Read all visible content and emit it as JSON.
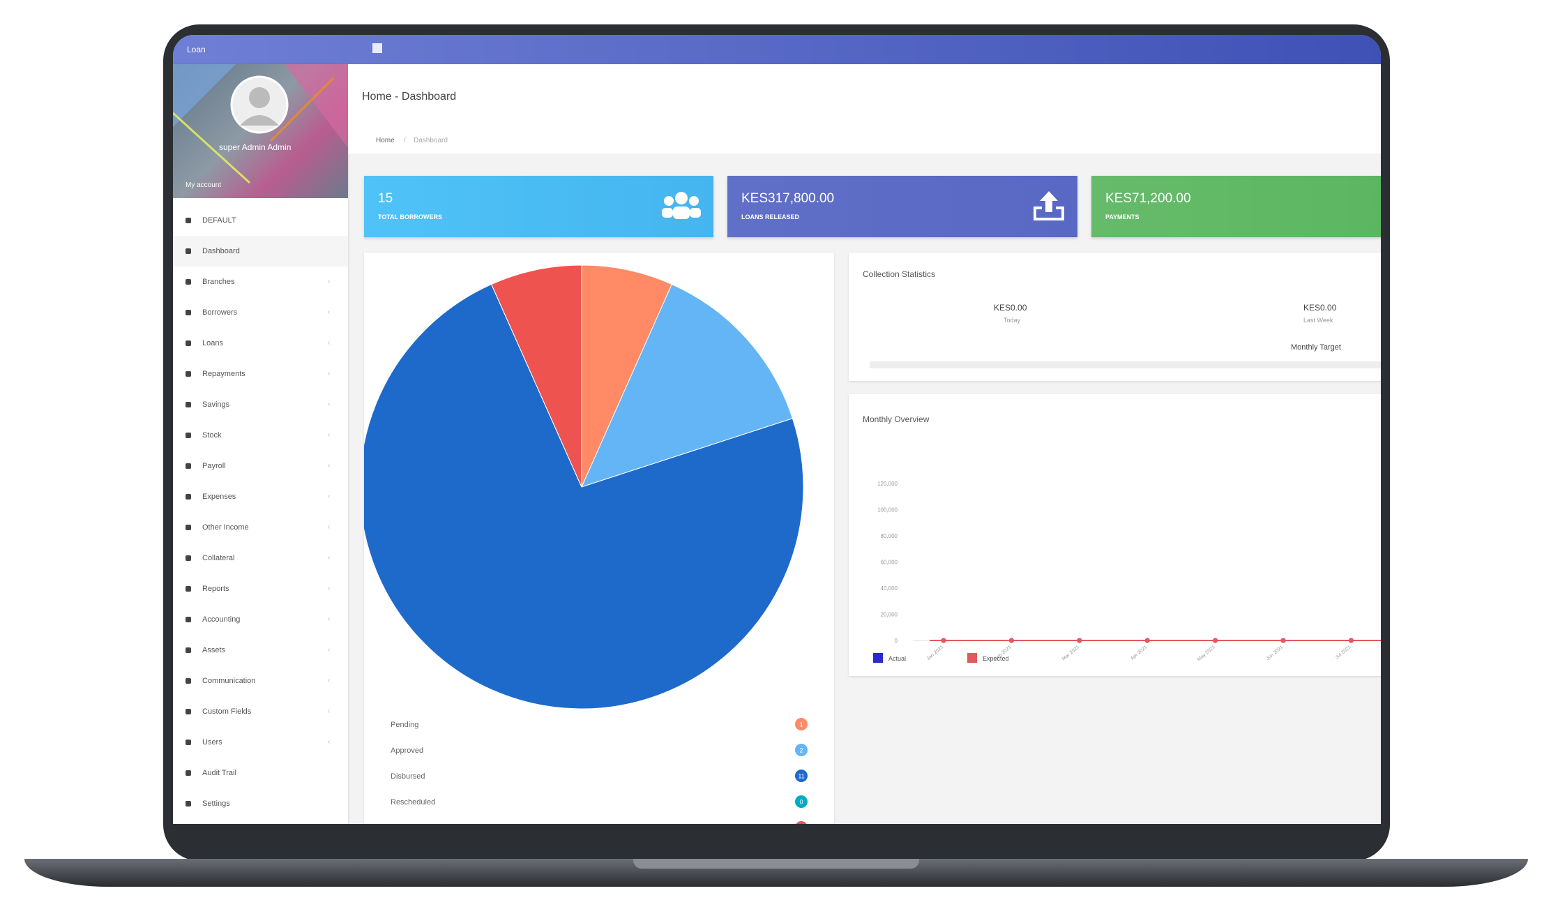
{
  "app": {
    "name": "Loan"
  },
  "profile": {
    "name": "super Admin Admin",
    "account": "My account"
  },
  "sidebar": {
    "items": [
      "DEFAULT",
      "Dashboard",
      "Branches",
      "Borrowers",
      "Loans",
      "Repayments",
      "Savings",
      "Stock",
      "Payroll",
      "Expenses",
      "Other Income",
      "Collateral",
      "Reports",
      "Accounting",
      "Assets",
      "Communication",
      "Custom Fields",
      "Users",
      "Audit Trail",
      "Settings"
    ]
  },
  "header": {
    "title": "Home - Dashboard",
    "breadcrumb": [
      "Home",
      "Dashboard"
    ]
  },
  "cards": [
    {
      "value": "15",
      "label": "TOTAL BORROWERS"
    },
    {
      "value": "KES317,800.00",
      "label": "LOANS RELEASED"
    },
    {
      "value": "KES71,200.00",
      "label": "PAYMENTS"
    }
  ],
  "collection": {
    "title": "Collection Statistics",
    "today_value": "KES0.00",
    "today_label": "Today",
    "week_value": "KES0.00",
    "week_label": "Last Week",
    "target_label": "Monthly Target"
  },
  "chart_data": [
    {
      "type": "pie",
      "categories": [
        "Pending",
        "Approved",
        "Disbursed",
        "Rescheduled",
        null
      ],
      "values": [
        1,
        2,
        11,
        0,
        1
      ],
      "colors": [
        "#ff8a65",
        "#64b5f6",
        "#1e6acb",
        "#00acc1",
        "#ef5350"
      ]
    },
    {
      "type": "line",
      "title": "Monthly Overview",
      "categories": [
        "Jan 2021",
        "Feb 2021",
        "Mar 2021",
        "Apr 2021",
        "May 2021",
        "Jun 2021",
        "Jul 2021"
      ],
      "series": [
        {
          "name": "Actual",
          "color": "#2a2ad0",
          "values": [
            0,
            0,
            0,
            0,
            0,
            0,
            0
          ]
        },
        {
          "name": "Expected",
          "color": "#e05a5a",
          "values": [
            0,
            0,
            0,
            0,
            0,
            0,
            0
          ]
        }
      ],
      "ylim": [
        0,
        120000
      ],
      "yticks": [
        0,
        {
          "value": 20000,
          "label": "20,000"
        },
        {
          "value": 40000,
          "label": "40,000"
        },
        {
          "value": 60000,
          "label": "60,000"
        },
        {
          "value": 80000,
          "label": "80,000"
        },
        {
          "value": 100000,
          "label": "100,000"
        },
        {
          "value": 120000,
          "label": "120,000"
        }
      ]
    }
  ]
}
